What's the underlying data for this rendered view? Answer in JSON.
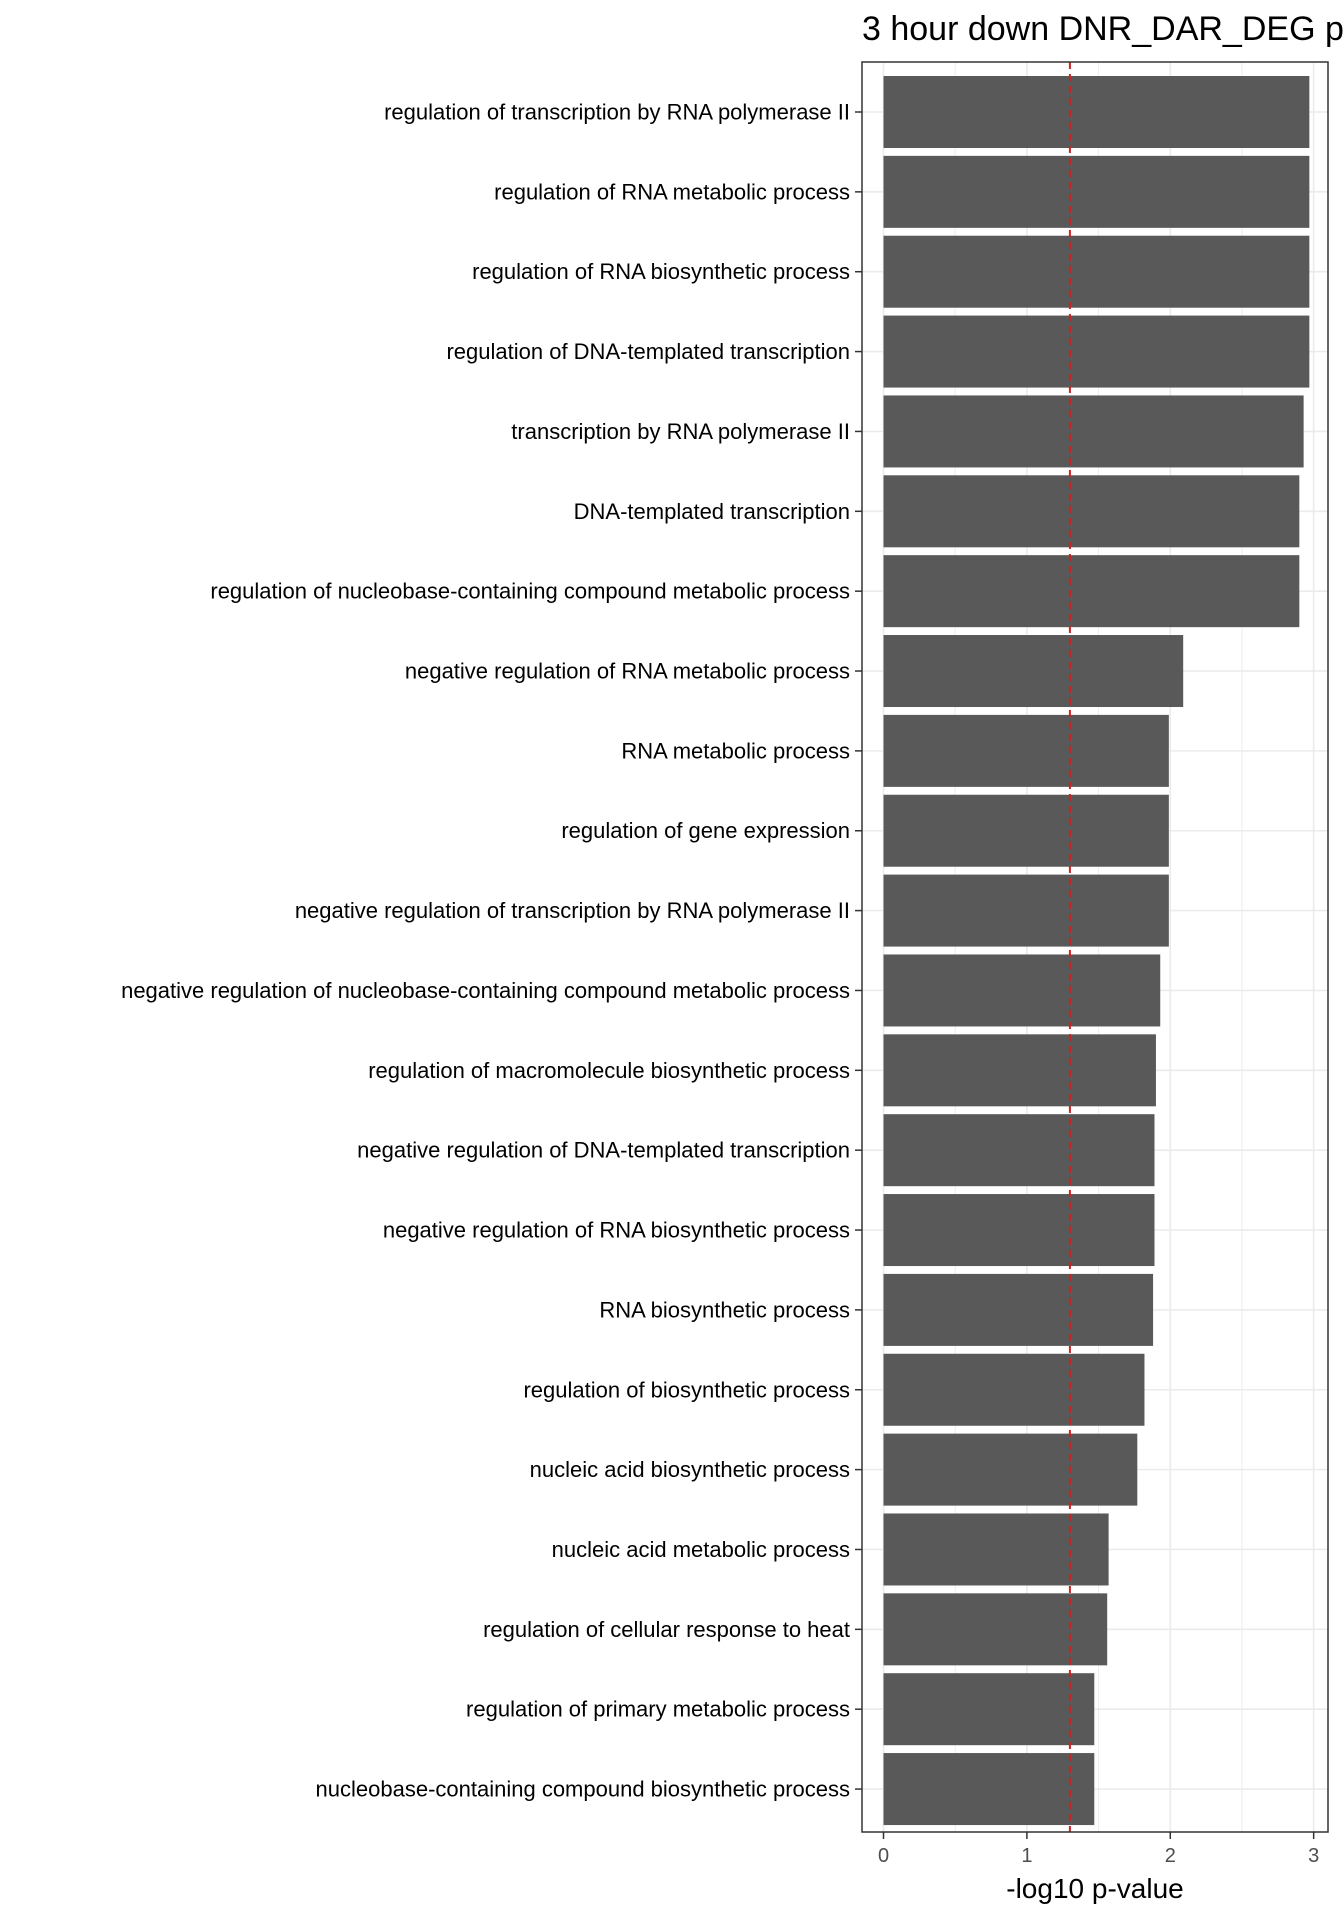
{
  "chart_data": {
    "type": "bar",
    "orientation": "horizontal",
    "title": "3 hour down DNR_DAR_DEG p",
    "xlabel": "-log10 p-value",
    "ylabel": "",
    "xlim": [
      -0.15,
      3.1
    ],
    "x_ticks": [
      "0",
      "1",
      "2",
      "3"
    ],
    "threshold_line": 1.3,
    "grid": true,
    "categories": [
      "regulation of transcription by RNA polymerase II",
      "regulation of RNA metabolic process",
      "regulation of RNA biosynthetic process",
      "regulation of DNA-templated transcription",
      "transcription by RNA polymerase II",
      "DNA-templated transcription",
      "regulation of nucleobase-containing compound metabolic process",
      "negative regulation of RNA metabolic process",
      "RNA metabolic process",
      "regulation of gene expression",
      "negative regulation of transcription by RNA polymerase II",
      "negative regulation of nucleobase-containing compound metabolic process",
      "regulation of macromolecule biosynthetic process",
      "negative regulation of DNA-templated transcription",
      "negative regulation of RNA biosynthetic process",
      "RNA biosynthetic process",
      "regulation of biosynthetic process",
      "nucleic acid biosynthetic process",
      "nucleic acid metabolic process",
      "regulation of cellular response to heat",
      "regulation of primary metabolic process",
      "nucleobase-containing compound biosynthetic process"
    ],
    "values": [
      2.97,
      2.97,
      2.97,
      2.97,
      2.93,
      2.9,
      2.9,
      2.09,
      1.99,
      1.99,
      1.99,
      1.93,
      1.9,
      1.89,
      1.89,
      1.88,
      1.82,
      1.77,
      1.57,
      1.56,
      1.47,
      1.47
    ],
    "colors": {
      "bar": "#595959",
      "threshold": "#cc2222",
      "grid": "#ebebeb",
      "panel_border": "#333333",
      "tick_label": "#4d4d4d"
    }
  }
}
